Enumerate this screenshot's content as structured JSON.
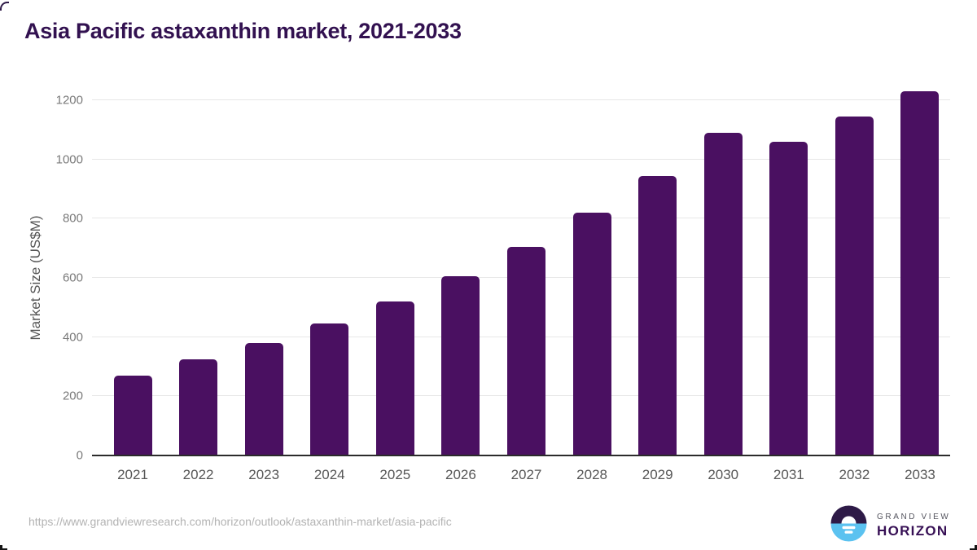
{
  "title": "Asia Pacific astaxanthin market, 2021-2033",
  "chart_data": {
    "type": "bar",
    "title": "Asia Pacific astaxanthin market, 2021-2033",
    "categories": [
      "2021",
      "2022",
      "2023",
      "2024",
      "2025",
      "2026",
      "2027",
      "2028",
      "2029",
      "2030",
      "2031",
      "2032",
      "2033"
    ],
    "values": [
      270,
      325,
      380,
      445,
      520,
      605,
      705,
      820,
      945,
      1090,
      1060,
      1145,
      1230
    ],
    "xlabel": "",
    "ylabel": "Market Size (US$M)",
    "ylim": [
      0,
      1200
    ],
    "yticks": [
      0,
      200,
      400,
      600,
      800,
      1000,
      1200
    ],
    "grid": true,
    "legend": "none",
    "bar_color": "#4a1061"
  },
  "footer": {
    "source_url": "https://www.grandviewresearch.com/horizon/outlook/astaxanthin-market/asia-pacific",
    "logo": {
      "brand_top": "GRAND VIEW",
      "brand_bottom": "HORIZON",
      "icon": "horizon-sun-icon"
    }
  },
  "colors": {
    "title_text": "#321150",
    "bar": "#4a1061",
    "gridline": "#e7e7e7",
    "axis_line": "#2b2b2b",
    "y_tick_text": "#7a7a7a",
    "x_tick_text": "#565656",
    "axis_title_text": "#555555",
    "url_text": "#b3b3b3",
    "logo_dark": "#2e1a47",
    "logo_blue": "#5bc2f0"
  }
}
